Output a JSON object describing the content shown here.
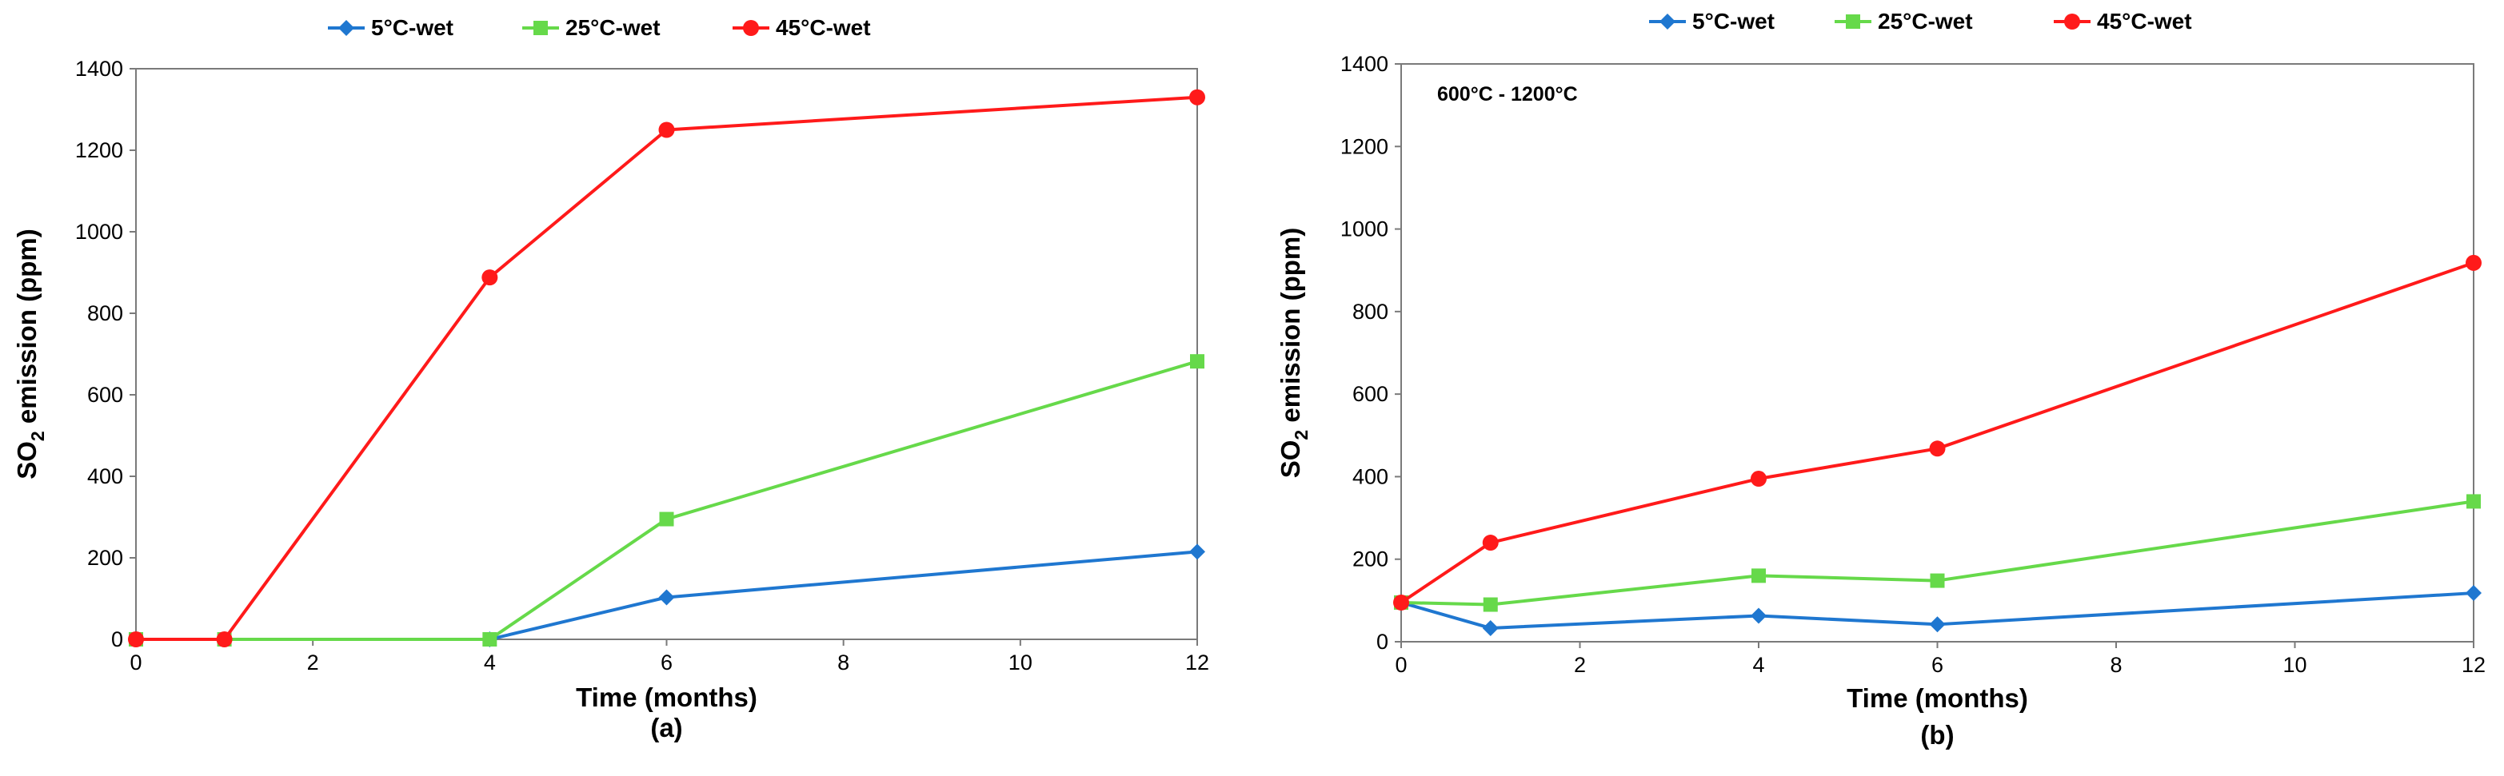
{
  "chart_data": [
    {
      "type": "line",
      "title": "",
      "panel_label": "(a)",
      "xlabel": "Time (months)",
      "ylabel": {
        "prefix": "SO",
        "subscript": "2",
        "suffix": " emission (ppm)"
      },
      "xlim": [
        0,
        12
      ],
      "ylim": [
        0,
        1400
      ],
      "x_ticks": [
        0,
        2,
        4,
        6,
        8,
        10,
        12
      ],
      "y_ticks": [
        0,
        200,
        400,
        600,
        800,
        1000,
        1200,
        1400
      ],
      "grid": false,
      "legend_position": "top-center",
      "annotation": "",
      "x": [
        0,
        1,
        4,
        6,
        12
      ],
      "series": [
        {
          "name": "5°C-wet",
          "color": "#1f77d0",
          "marker": "diamond",
          "values": [
            0,
            0,
            0,
            103,
            215
          ]
        },
        {
          "name": "25°C-wet",
          "color": "#66d94a",
          "marker": "square",
          "values": [
            0,
            0,
            0,
            295,
            682
          ]
        },
        {
          "name": "45°C-wet",
          "color": "#ff1a1a",
          "marker": "circle",
          "values": [
            0,
            0,
            888,
            1250,
            1330
          ]
        }
      ]
    },
    {
      "type": "line",
      "title": "",
      "panel_label": "(b)",
      "xlabel": "Time (months)",
      "ylabel": {
        "prefix": "SO",
        "subscript": "2",
        "suffix": " emission (ppm)"
      },
      "xlim": [
        0,
        12
      ],
      "ylim": [
        0,
        1400
      ],
      "x_ticks": [
        0,
        2,
        4,
        6,
        8,
        10,
        12
      ],
      "y_ticks": [
        0,
        200,
        400,
        600,
        800,
        1000,
        1200,
        1400
      ],
      "grid": false,
      "legend_position": "top-center",
      "annotation": "600°C - 1200°C",
      "x": [
        0,
        1,
        4,
        6,
        12
      ],
      "series": [
        {
          "name": "5°C-wet",
          "color": "#1f77d0",
          "marker": "diamond",
          "values": [
            95,
            33,
            63,
            42,
            118
          ]
        },
        {
          "name": "25°C-wet",
          "color": "#66d94a",
          "marker": "square",
          "values": [
            95,
            90,
            160,
            148,
            340
          ]
        },
        {
          "name": "45°C-wet",
          "color": "#ff1a1a",
          "marker": "circle",
          "values": [
            95,
            240,
            395,
            468,
            918
          ]
        }
      ]
    }
  ]
}
